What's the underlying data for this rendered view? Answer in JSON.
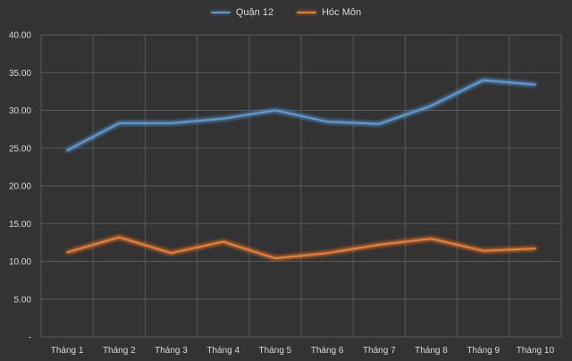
{
  "chart_data": {
    "type": "line",
    "categories": [
      "Tháng 1",
      "Tháng 2",
      "Tháng 3",
      "Tháng 4",
      "Tháng 5",
      "Tháng 6",
      "Tháng 7",
      "Tháng 8",
      "Tháng 9",
      "Tháng 10"
    ],
    "series": [
      {
        "name": "Quận 12",
        "color": "#5b9bd5",
        "values": [
          24.7,
          28.3,
          28.3,
          28.9,
          30.0,
          28.5,
          28.2,
          30.6,
          34.0,
          33.4
        ]
      },
      {
        "name": "Hóc Môn",
        "color": "#ed7d31",
        "values": [
          11.2,
          13.2,
          11.1,
          12.6,
          10.4,
          11.1,
          12.2,
          13.0,
          11.4,
          11.7
        ]
      }
    ],
    "yticks": [
      "-",
      "5.00",
      "10.00",
      "15.00",
      "20.00",
      "25.00",
      "30.00",
      "35.00",
      "40.00"
    ],
    "ylim": [
      0,
      40
    ],
    "title": "",
    "xlabel": "",
    "ylabel": "",
    "grid": true,
    "legend_position": "top-center",
    "grid_color": "#595959",
    "background": "#333333"
  }
}
